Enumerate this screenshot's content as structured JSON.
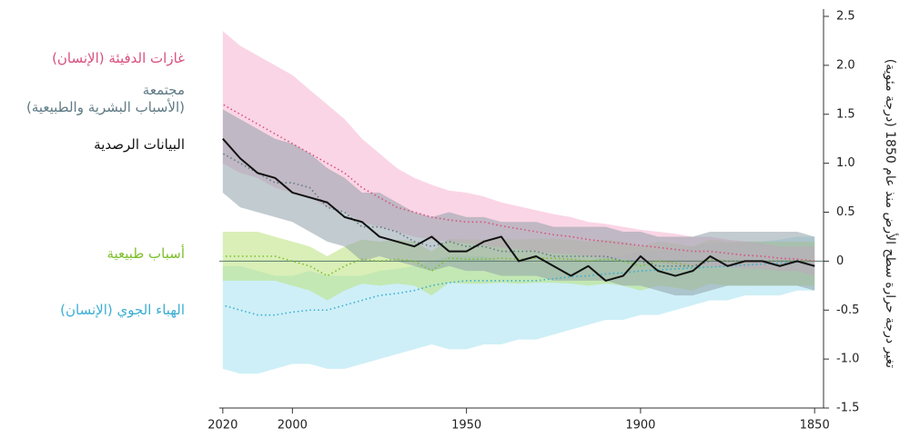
{
  "chart_data": {
    "type": "line",
    "y_label": "تغير درجة حرارة سطح الأرض منذ عام 1850 (درجة مئوية)",
    "x": [
      1850,
      1855,
      1860,
      1865,
      1870,
      1875,
      1880,
      1885,
      1890,
      1895,
      1900,
      1905,
      1910,
      1915,
      1920,
      1925,
      1930,
      1935,
      1940,
      1945,
      1950,
      1955,
      1960,
      1965,
      1970,
      1975,
      1980,
      1985,
      1990,
      1995,
      2000,
      2005,
      2010,
      2015,
      2020
    ],
    "xlim": [
      2021,
      1849
    ],
    "xticks": [
      2020,
      2000,
      1950,
      1900,
      1850
    ],
    "ylim": [
      -1.5,
      2.5
    ],
    "yticks": [
      -1.5,
      {
        "value": -1,
        "label": "-1.0"
      },
      -0.5,
      0,
      0.5,
      {
        "value": 1,
        "label": "1.0"
      },
      1.5,
      {
        "value": 2,
        "label": "2.0"
      },
      2.5
    ],
    "series": [
      {
        "name": "الهباء الجوي (الإنسان)",
        "color": "#3aaed3",
        "band_color": "#a6e1f0",
        "values": [
          0,
          -0.01,
          -0.02,
          -0.03,
          -0.04,
          -0.05,
          -0.06,
          -0.07,
          -0.08,
          -0.09,
          -0.1,
          -0.12,
          -0.13,
          -0.15,
          -0.16,
          -0.18,
          -0.2,
          -0.2,
          -0.2,
          -0.2,
          -0.2,
          -0.22,
          -0.25,
          -0.3,
          -0.33,
          -0.35,
          -0.4,
          -0.45,
          -0.5,
          -0.5,
          -0.52,
          -0.55,
          -0.55,
          -0.5,
          -0.45
        ],
        "upper": [
          0.25,
          0.25,
          0.22,
          0.2,
          0.2,
          0.18,
          0.18,
          0.15,
          0.12,
          0.1,
          0.1,
          0.05,
          0.05,
          0.0,
          0.0,
          0.0,
          -0.02,
          0.0,
          0.0,
          0.05,
          0.05,
          0.05,
          0.0,
          -0.05,
          -0.08,
          -0.1,
          -0.15,
          -0.15,
          -0.15,
          -0.1,
          -0.15,
          -0.15,
          -0.1,
          -0.05,
          -0.05
        ],
        "lower": [
          -0.3,
          -0.3,
          -0.35,
          -0.35,
          -0.35,
          -0.4,
          -0.4,
          -0.45,
          -0.5,
          -0.55,
          -0.55,
          -0.6,
          -0.6,
          -0.65,
          -0.7,
          -0.75,
          -0.8,
          -0.8,
          -0.85,
          -0.85,
          -0.9,
          -0.9,
          -0.85,
          -0.9,
          -0.95,
          -1.0,
          -1.05,
          -1.1,
          -1.1,
          -1.05,
          -1.05,
          -1.1,
          -1.15,
          -1.15,
          -1.1
        ]
      },
      {
        "name": "أسباب طبيعية",
        "color": "#7cbf2a",
        "band_color": "#b9e27c",
        "values": [
          0,
          0,
          0,
          0,
          0,
          0,
          0.02,
          -0.05,
          -0.02,
          0,
          -0.05,
          0,
          0.02,
          0,
          0.02,
          0.03,
          0.03,
          0.02,
          0.03,
          0.02,
          0.02,
          0.03,
          -0.1,
          0.0,
          0.02,
          0.0,
          0.02,
          -0.05,
          -0.15,
          -0.05,
          0.0,
          0.05,
          0.05,
          0.05,
          0.05
        ],
        "upper": [
          0.2,
          0.2,
          0.2,
          0.2,
          0.2,
          0.2,
          0.22,
          0.15,
          0.18,
          0.2,
          0.15,
          0.2,
          0.22,
          0.2,
          0.22,
          0.23,
          0.23,
          0.22,
          0.23,
          0.22,
          0.22,
          0.23,
          0.1,
          0.2,
          0.22,
          0.2,
          0.22,
          0.15,
          0.05,
          0.15,
          0.2,
          0.25,
          0.3,
          0.3,
          0.3
        ],
        "lower": [
          -0.25,
          -0.25,
          -0.25,
          -0.25,
          -0.25,
          -0.25,
          -0.23,
          -0.3,
          -0.27,
          -0.25,
          -0.3,
          -0.25,
          -0.23,
          -0.25,
          -0.23,
          -0.22,
          -0.22,
          -0.23,
          -0.22,
          -0.23,
          -0.23,
          -0.22,
          -0.35,
          -0.25,
          -0.23,
          -0.25,
          -0.23,
          -0.3,
          -0.4,
          -0.3,
          -0.25,
          -0.2,
          -0.2,
          -0.2,
          -0.2
        ]
      },
      {
        "name": "غازات الدفيئة (الإنسان)",
        "color": "#d94f7f",
        "band_color": "#f6b3cf",
        "values": [
          0.0,
          0.02,
          0.03,
          0.05,
          0.06,
          0.08,
          0.1,
          0.1,
          0.12,
          0.14,
          0.16,
          0.18,
          0.2,
          0.22,
          0.25,
          0.27,
          0.3,
          0.33,
          0.36,
          0.4,
          0.4,
          0.42,
          0.45,
          0.5,
          0.55,
          0.65,
          0.75,
          0.9,
          1.0,
          1.1,
          1.2,
          1.3,
          1.4,
          1.5,
          1.6
        ],
        "upper": [
          0.15,
          0.15,
          0.15,
          0.18,
          0.2,
          0.22,
          0.25,
          0.25,
          0.28,
          0.3,
          0.32,
          0.35,
          0.38,
          0.4,
          0.45,
          0.48,
          0.52,
          0.56,
          0.6,
          0.66,
          0.7,
          0.72,
          0.78,
          0.85,
          0.95,
          1.1,
          1.25,
          1.45,
          1.6,
          1.75,
          1.9,
          2.0,
          2.1,
          2.2,
          2.35
        ],
        "lower": [
          -0.15,
          -0.1,
          -0.1,
          -0.08,
          -0.08,
          -0.06,
          -0.05,
          -0.05,
          -0.04,
          -0.02,
          0.0,
          0.02,
          0.03,
          0.05,
          0.07,
          0.08,
          0.1,
          0.12,
          0.14,
          0.16,
          0.18,
          0.2,
          0.22,
          0.25,
          0.3,
          0.35,
          0.4,
          0.5,
          0.55,
          0.65,
          0.7,
          0.75,
          0.85,
          0.9,
          1.0
        ]
      },
      {
        "name": "مجتمعة\n(الأسباب البشرية والطبيعية)",
        "color": "#5f7a85",
        "band_color": "#8fa0aa",
        "values": [
          -0.05,
          0,
          0,
          0,
          0,
          0,
          0,
          -0.05,
          -0.05,
          -0.05,
          0,
          0,
          0.05,
          0.05,
          0.05,
          0.05,
          0.1,
          0.1,
          0.1,
          0.15,
          0.15,
          0.2,
          0.15,
          0.2,
          0.3,
          0.35,
          0.35,
          0.5,
          0.55,
          0.75,
          0.8,
          0.8,
          0.9,
          1.0,
          1.1
        ],
        "upper": [
          0.25,
          0.3,
          0.3,
          0.3,
          0.3,
          0.3,
          0.3,
          0.25,
          0.25,
          0.25,
          0.3,
          0.3,
          0.35,
          0.35,
          0.35,
          0.35,
          0.4,
          0.4,
          0.4,
          0.45,
          0.45,
          0.5,
          0.45,
          0.5,
          0.6,
          0.7,
          0.7,
          0.85,
          0.95,
          1.1,
          1.2,
          1.25,
          1.35,
          1.45,
          1.55
        ],
        "lower": [
          -0.3,
          -0.25,
          -0.25,
          -0.25,
          -0.25,
          -0.25,
          -0.3,
          -0.35,
          -0.35,
          -0.3,
          -0.25,
          -0.25,
          -0.2,
          -0.2,
          -0.2,
          -0.2,
          -0.15,
          -0.15,
          -0.15,
          -0.1,
          -0.1,
          -0.05,
          -0.1,
          -0.05,
          0.0,
          0.05,
          0.0,
          0.15,
          0.2,
          0.3,
          0.4,
          0.45,
          0.5,
          0.55,
          0.7
        ]
      },
      {
        "name": "البيانات الرصدية",
        "color": "#111111",
        "values": [
          -0.05,
          0.0,
          -0.05,
          0.0,
          0.0,
          -0.05,
          0.05,
          -0.1,
          -0.15,
          -0.1,
          0.05,
          -0.15,
          -0.2,
          -0.05,
          -0.15,
          -0.05,
          0.05,
          0.0,
          0.25,
          0.2,
          0.1,
          0.1,
          0.25,
          0.15,
          0.2,
          0.25,
          0.4,
          0.45,
          0.6,
          0.65,
          0.7,
          0.85,
          0.9,
          1.05,
          1.25
        ]
      }
    ]
  }
}
